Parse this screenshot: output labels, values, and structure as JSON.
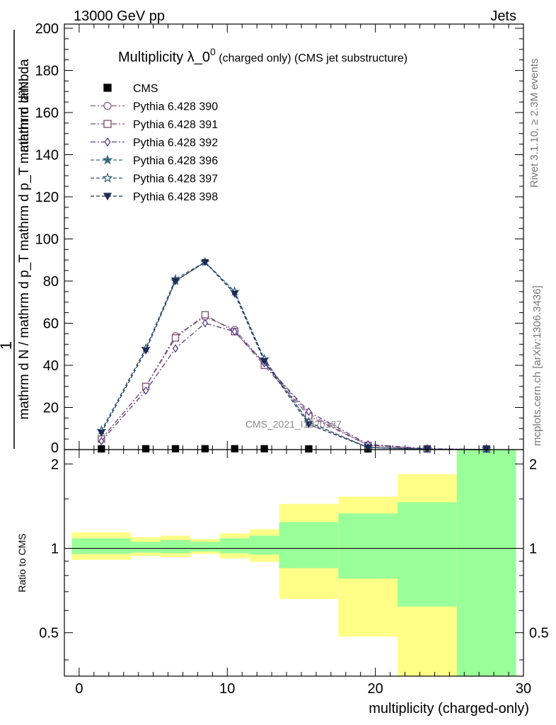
{
  "header": {
    "left": "13000 GeV pp",
    "right": "Jets"
  },
  "side_labels": {
    "rivet": "Rivet 3.1.10, ≥ 2.3M events",
    "mcplots": "mcplots.cern.ch [arXiv:1306.3436]"
  },
  "watermark": "CMS_2021_I1920187",
  "chart_data": [
    {
      "type": "line",
      "panel": "main",
      "title_main": "Multiplicity λ_0",
      "title_sup": "0",
      "title_rest": " (charged only) (CMS jet substructure)",
      "ylabel_num": "1",
      "ylabel_den": "mathrm d N / mathrm d p_T mathrm d p_T mathrm d lambda",
      "ylabel_extra": "mathrm d²N",
      "xlabel": "multiplicity (charged-only)",
      "xlim": [
        -1,
        30
      ],
      "ylim": [
        0,
        202
      ],
      "yticks": [
        20,
        40,
        60,
        80,
        100,
        120,
        140,
        160,
        180,
        200
      ],
      "xticks": [
        0,
        10,
        20,
        30
      ],
      "legend_position": "top-left",
      "series": [
        {
          "name": "CMS",
          "color": "#000000",
          "marker": "square-filled",
          "x": [
            1.5,
            4.5,
            6.5,
            8.5,
            10.5,
            12.5,
            15.5,
            19.5,
            23.5,
            27.5
          ],
          "y": [
            0.3,
            0.4,
            0.4,
            0.4,
            0.4,
            0.4,
            0.3,
            0.2,
            0.1,
            0.05
          ]
        },
        {
          "name": "Pythia 6.428 390",
          "color": "#8a5a8c",
          "marker": "circle-open",
          "dash": "dashdot",
          "x": [
            1.5,
            4.5,
            6.5,
            8.5,
            10.5,
            12.5,
            15.5,
            19.5,
            23.5,
            27.5
          ],
          "y": [
            5,
            30,
            54,
            63,
            57,
            41,
            17,
            2,
            0.3,
            0.05
          ]
        },
        {
          "name": "Pythia 6.428 391",
          "color": "#7a4a6a",
          "marker": "square-open",
          "dash": "dashdot",
          "x": [
            1.5,
            4.5,
            6.5,
            8.5,
            10.5,
            12.5,
            15.5,
            19.5,
            23.5,
            27.5
          ],
          "y": [
            5,
            30,
            53,
            64,
            56,
            40,
            16,
            2,
            0.3,
            0.05
          ]
        },
        {
          "name": "Pythia 6.428 392",
          "color": "#5a3a8c",
          "marker": "diamond-open",
          "dash": "dashdot",
          "x": [
            1.5,
            4.5,
            6.5,
            8.5,
            10.5,
            12.5,
            15.5,
            19.5,
            23.5,
            27.5
          ],
          "y": [
            4,
            28,
            48,
            60,
            56,
            41,
            18,
            2.5,
            0.4,
            0.06
          ]
        },
        {
          "name": "Pythia 6.428 396",
          "color": "#3a6a7a",
          "marker": "star-filled",
          "dash": "dashed",
          "x": [
            1.5,
            4.5,
            6.5,
            8.5,
            10.5,
            12.5,
            15.5,
            19.5,
            23.5,
            27.5
          ],
          "y": [
            9,
            48,
            81,
            89,
            75,
            43,
            13,
            1,
            0.1,
            0.01
          ]
        },
        {
          "name": "Pythia 6.428 397",
          "color": "#2a5a7a",
          "marker": "star-open",
          "dash": "dashed",
          "x": [
            1.5,
            4.5,
            6.5,
            8.5,
            10.5,
            12.5,
            15.5,
            19.5,
            23.5,
            27.5
          ],
          "y": [
            9,
            48,
            80,
            89,
            75,
            43,
            13,
            1,
            0.1,
            0.01
          ]
        },
        {
          "name": "Pythia 6.428 398",
          "color": "#1e2a55",
          "marker": "triangle-down-filled",
          "dash": "dashed",
          "x": [
            1.5,
            4.5,
            6.5,
            8.5,
            10.5,
            12.5,
            15.5,
            19.5,
            23.5,
            27.5
          ],
          "y": [
            8,
            47,
            80,
            89,
            74,
            42,
            12,
            1,
            0.1,
            0.01
          ]
        }
      ]
    },
    {
      "type": "area",
      "panel": "ratio",
      "ylabel": "Ratio to CMS",
      "xlim": [
        -1,
        30
      ],
      "ylim": [
        0.35,
        2.25
      ],
      "yticks": [
        0.5,
        1,
        2
      ],
      "ytick_labels": [
        "0.5",
        "1",
        "2"
      ],
      "reference_line": 1,
      "bins": [
        {
          "x0": -0.5,
          "x1": 3.5,
          "yellow": [
            0.91,
            1.14
          ],
          "green": [
            0.955,
            1.085
          ]
        },
        {
          "x0": 3.5,
          "x1": 5.5,
          "yellow": [
            0.94,
            1.095
          ],
          "green": [
            0.965,
            1.055
          ]
        },
        {
          "x0": 5.5,
          "x1": 7.5,
          "yellow": [
            0.93,
            1.11
          ],
          "green": [
            0.96,
            1.07
          ]
        },
        {
          "x0": 7.5,
          "x1": 9.5,
          "yellow": [
            0.955,
            1.08
          ],
          "green": [
            0.975,
            1.055
          ]
        },
        {
          "x0": 9.5,
          "x1": 11.5,
          "yellow": [
            0.92,
            1.13
          ],
          "green": [
            0.96,
            1.085
          ]
        },
        {
          "x0": 11.5,
          "x1": 13.5,
          "yellow": [
            0.895,
            1.17
          ],
          "green": [
            0.95,
            1.11
          ]
        },
        {
          "x0": 13.5,
          "x1": 17.5,
          "yellow": [
            0.66,
            1.44
          ],
          "green": [
            0.85,
            1.24
          ]
        },
        {
          "x0": 17.5,
          "x1": 21.5,
          "yellow": [
            0.485,
            1.53
          ],
          "green": [
            0.78,
            1.33
          ]
        },
        {
          "x0": 21.5,
          "x1": 25.5,
          "yellow": [
            0.35,
            1.84
          ],
          "green": [
            0.62,
            1.46
          ]
        },
        {
          "x0": 25.5,
          "x1": 29.5,
          "yellow": [
            0.35,
            2.25
          ],
          "green": [
            0.35,
            2.25
          ]
        }
      ]
    }
  ]
}
